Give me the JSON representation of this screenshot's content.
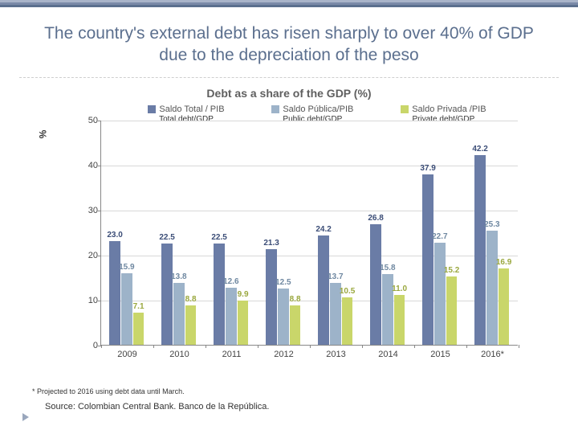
{
  "bands": [
    "#a9b4c9",
    "#7b8aa8",
    "#5b6f8e"
  ],
  "title": "The country's external debt has risen sharply to over 40% of GDP due to the depreciation of the peso",
  "chart": {
    "type": "bar",
    "title": "Debt as a share of the GDP (%)",
    "y_axis_label": "%",
    "ylim": [
      0,
      50
    ],
    "ytick_step": 10,
    "categories": [
      "2009",
      "2010",
      "2011",
      "2012",
      "2013",
      "2014",
      "2015",
      "2016*"
    ],
    "series": [
      {
        "key": "total",
        "label": "Saldo Total / PIB",
        "sub": "Total debt/GDP",
        "color": "#6a7ca6",
        "label_color": "#3b4d77"
      },
      {
        "key": "public",
        "label": "Saldo Pública/PIB",
        "sub": "Public debt/GDP",
        "color": "#9db3c9",
        "label_color": "#6f88a1"
      },
      {
        "key": "private",
        "label": "Saldo Privada /PIB",
        "sub": "Private debt/GDP",
        "color": "#c9d66a",
        "label_color": "#9aa83f"
      }
    ],
    "data": {
      "total": [
        23.0,
        22.5,
        22.5,
        21.3,
        24.2,
        26.8,
        37.9,
        42.2
      ],
      "public": [
        15.9,
        13.8,
        12.6,
        12.5,
        13.7,
        15.8,
        22.7,
        25.3
      ],
      "private": [
        7.1,
        8.8,
        9.9,
        8.8,
        10.5,
        11.0,
        15.2,
        16.9
      ]
    },
    "grid_color": "#d8d8d8",
    "axis_color": "#888888",
    "bar_group_width": 0.68,
    "bar_gap": 0.02
  },
  "footnote": "* Projected to 2016 using debt data until March.",
  "source": "Source: Colombian Central Bank. Banco de la República."
}
